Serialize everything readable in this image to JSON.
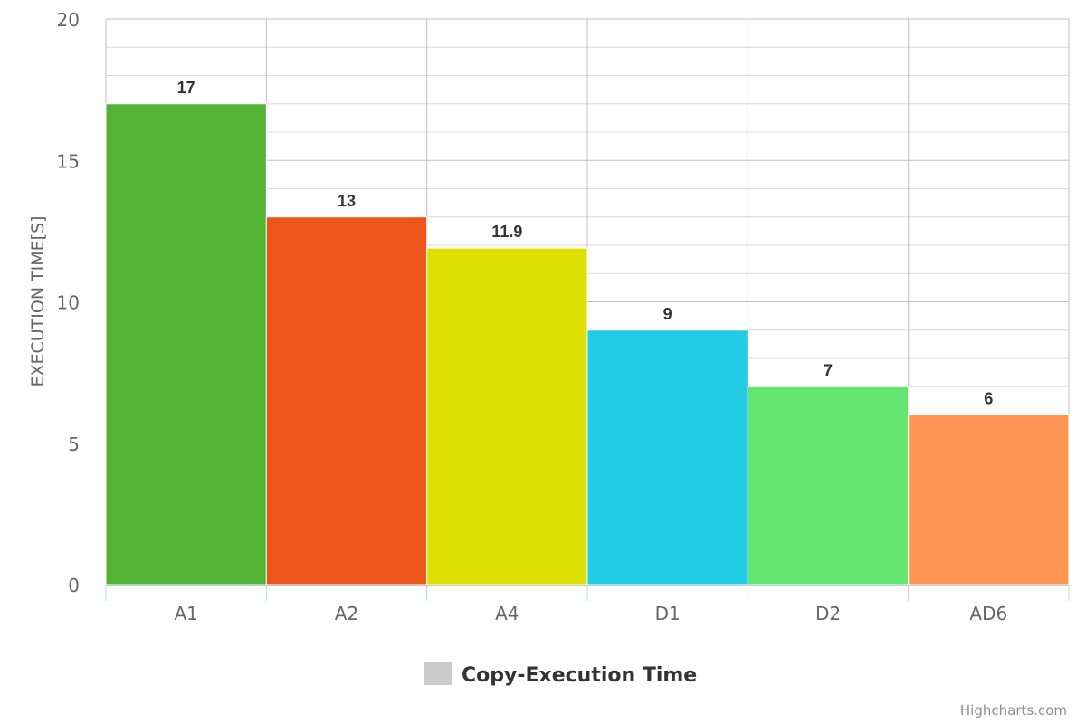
{
  "chart_data": {
    "type": "bar",
    "categories": [
      "A1",
      "A2",
      "A4",
      "D1",
      "D2",
      "AD6"
    ],
    "series": [
      {
        "name": "Copy-Execution Time",
        "values": [
          17,
          13,
          11.9,
          9,
          7,
          6
        ]
      }
    ],
    "colors": [
      "#52b334",
      "#ec561b",
      "#dde000",
      "#24cbe5",
      "#64e572",
      "#ff9655"
    ],
    "legend_color": "#cccccc",
    "ylabel": "EXECUTION TIME[S]",
    "xlabel": "",
    "ylim": [
      0,
      20
    ],
    "y_ticks": [
      0,
      5,
      10,
      15,
      20
    ],
    "y_minor_step": 1,
    "grid": true,
    "legend": "bottom-center",
    "data_labels": true
  },
  "credits": "Highcharts.com"
}
